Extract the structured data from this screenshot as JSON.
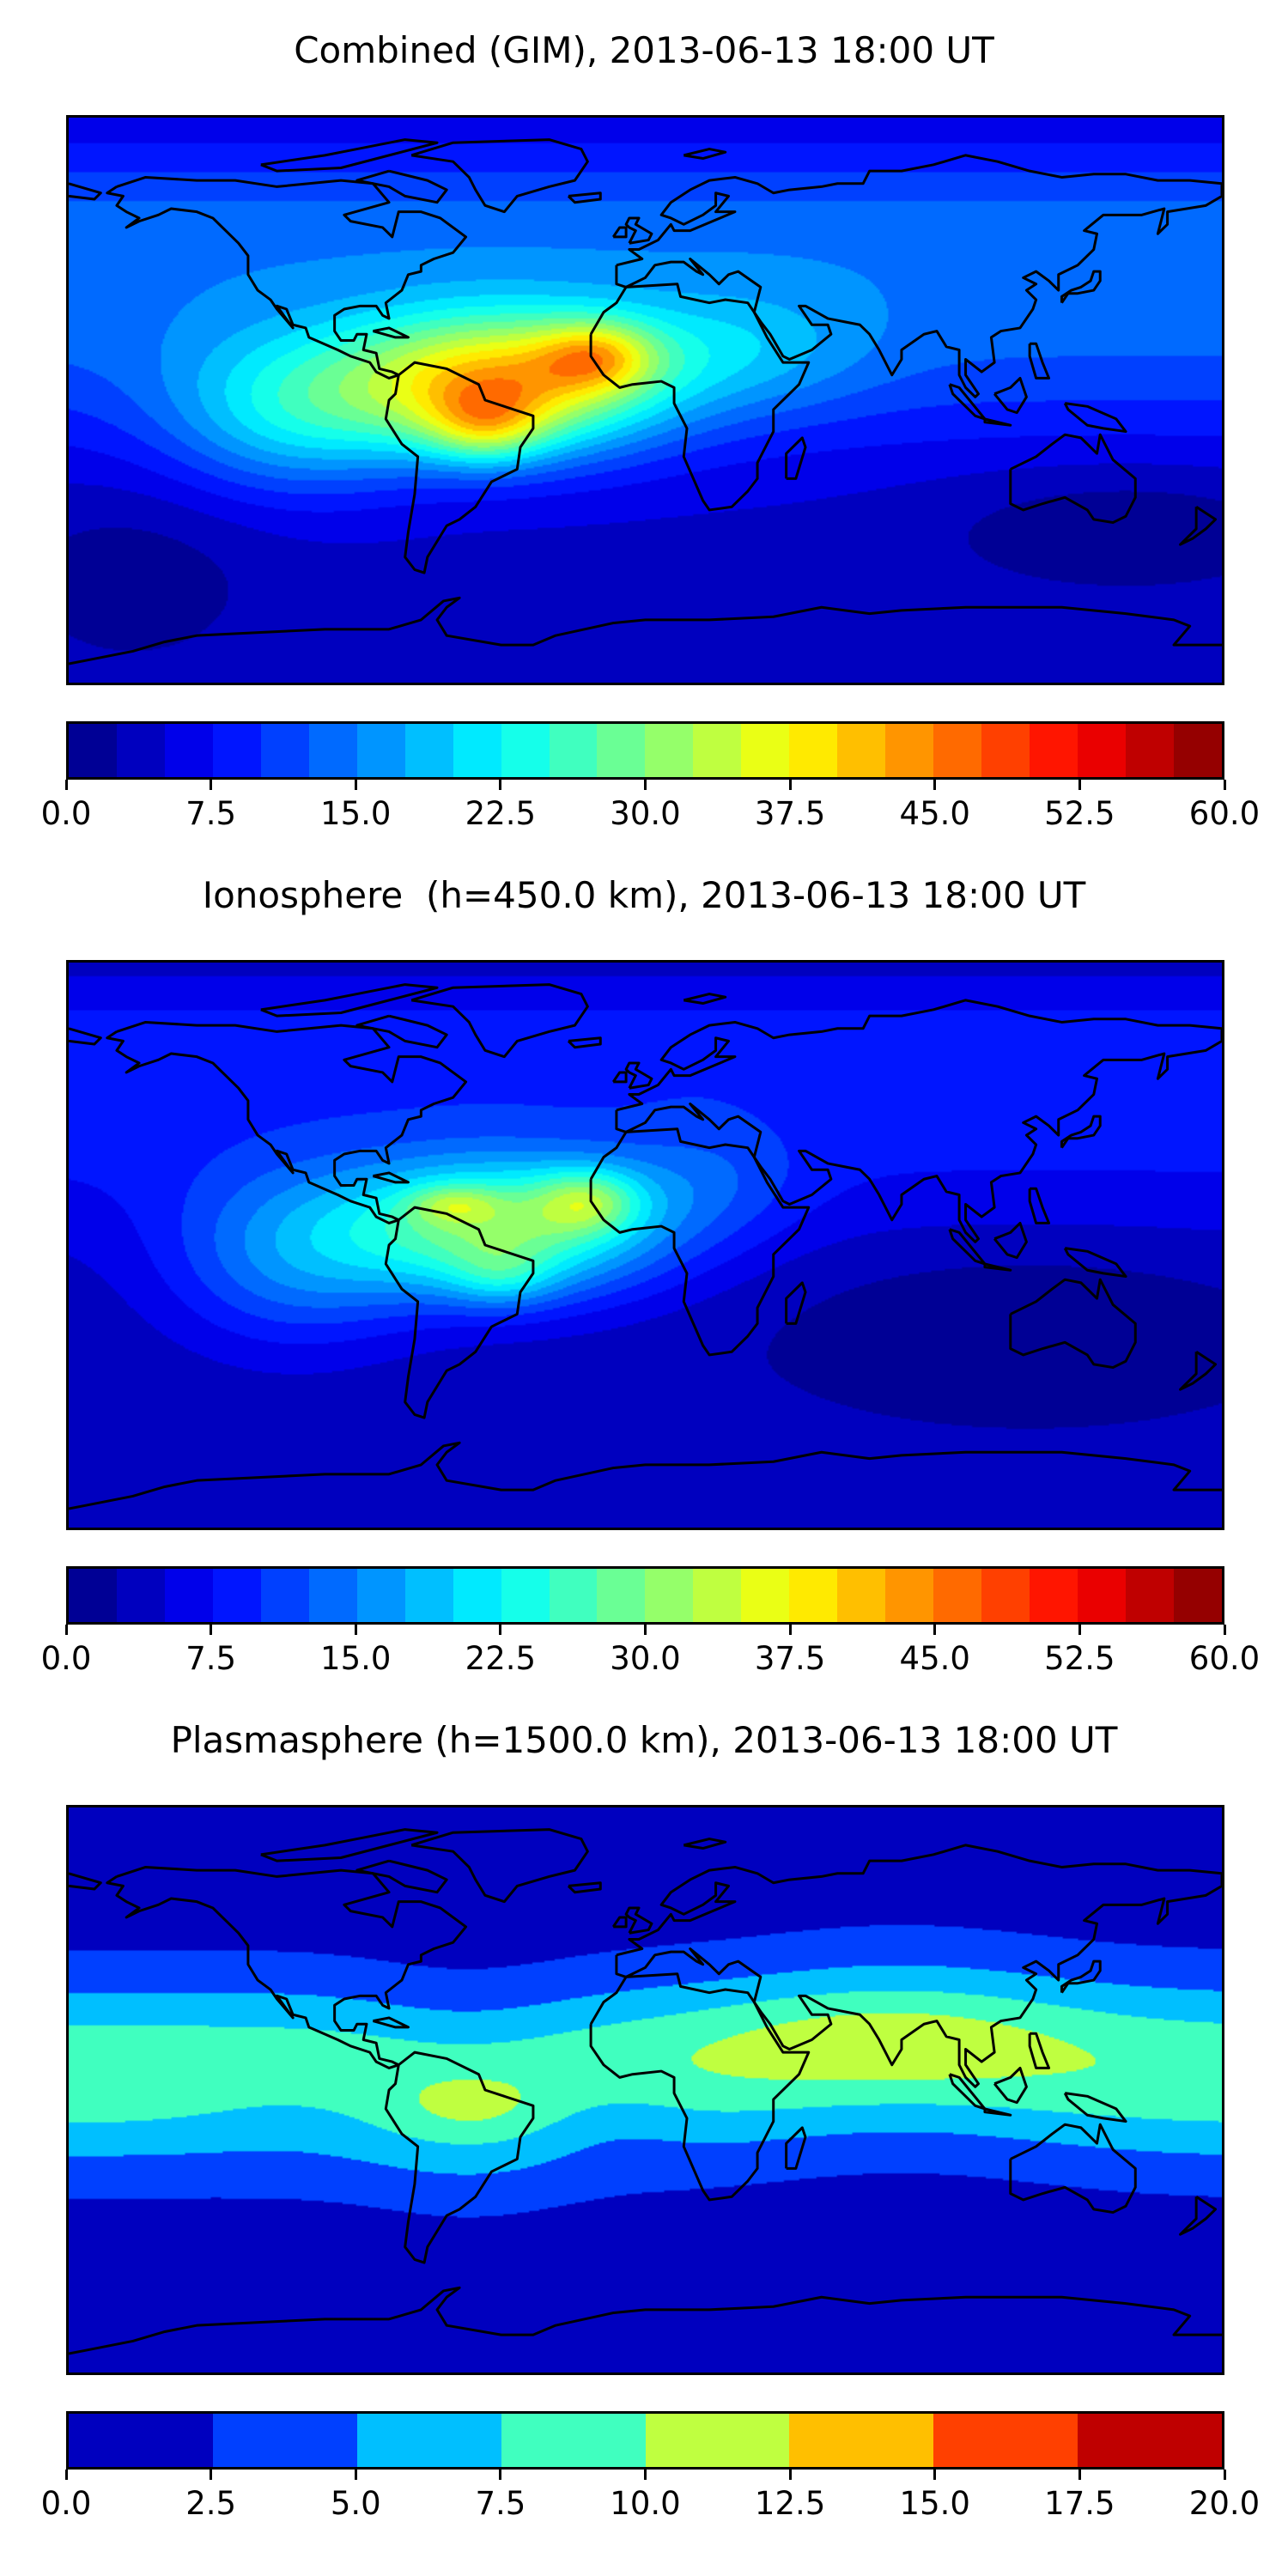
{
  "chart_data": [
    {
      "type": "heatmap",
      "subtype": "filled-contour-map",
      "title": "Combined (GIM), 2013-06-13 18:00 UT",
      "projection": "equirectangular",
      "lon_range": [
        -180,
        180
      ],
      "lat_range": [
        -90,
        90
      ],
      "vmin": 0,
      "vmax": 60,
      "level_step": 2.5,
      "n_levels": 24,
      "colormap": "jet",
      "colorbar_ticks": [
        "0.0",
        "7.5",
        "15.0",
        "22.5",
        "30.0",
        "37.5",
        "45.0",
        "52.5",
        "60.0"
      ],
      "colorbar_tick_values": [
        0,
        7.5,
        15,
        22.5,
        30,
        37.5,
        45,
        52.5,
        60
      ],
      "features": {
        "peak_value_approx": 50,
        "peak_region": "tropical Atlantic / northern South America",
        "min_value_approx": 2,
        "min_region": "southern high latitudes"
      }
    },
    {
      "type": "heatmap",
      "subtype": "filled-contour-map",
      "title": "Ionosphere  (h=450.0 km), 2013-06-13 18:00 UT",
      "projection": "equirectangular",
      "lon_range": [
        -180,
        180
      ],
      "lat_range": [
        -90,
        90
      ],
      "vmin": 0,
      "vmax": 60,
      "level_step": 2.5,
      "n_levels": 24,
      "colormap": "jet",
      "colorbar_ticks": [
        "0.0",
        "7.5",
        "15.0",
        "22.5",
        "30.0",
        "37.5",
        "45.0",
        "52.5",
        "60.0"
      ],
      "colorbar_tick_values": [
        0,
        7.5,
        15,
        22.5,
        30,
        37.5,
        45,
        52.5,
        60
      ],
      "features": {
        "peak_value_approx": 42,
        "peak_region": "tropical Atlantic off West Africa",
        "min_value_approx": 1,
        "min_region": "southern Indian Ocean / Pacific"
      }
    },
    {
      "type": "heatmap",
      "subtype": "filled-contour-map",
      "title": "Plasmasphere (h=1500.0 km), 2013-06-13 18:00 UT",
      "projection": "equirectangular",
      "lon_range": [
        -180,
        180
      ],
      "lat_range": [
        -90,
        90
      ],
      "vmin": 0,
      "vmax": 20,
      "level_step": 2.5,
      "n_levels": 8,
      "colormap": "jet",
      "colorbar_ticks": [
        "0.0",
        "2.5",
        "5.0",
        "7.5",
        "10.0",
        "12.5",
        "15.0",
        "17.5",
        "20.0"
      ],
      "colorbar_tick_values": [
        0,
        2.5,
        5,
        7.5,
        10,
        12.5,
        15,
        17.5,
        20
      ],
      "features": {
        "peak_value_approx": 11,
        "peak_region": "Africa / South Asia and northern South America",
        "min_value_approx": 1,
        "min_region": "high latitudes"
      }
    }
  ]
}
